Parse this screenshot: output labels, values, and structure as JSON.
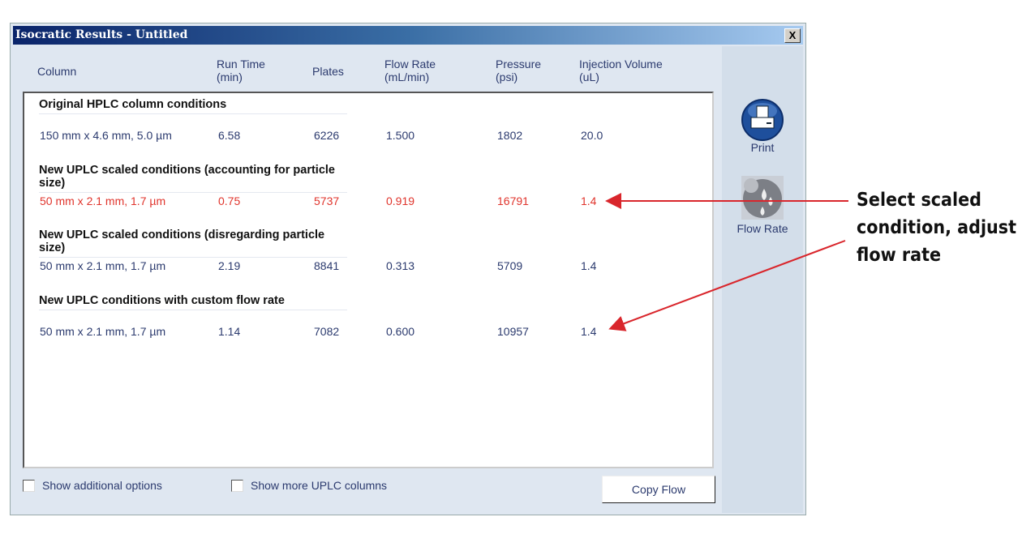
{
  "window": {
    "title": "Isocratic Results - Untitled",
    "close": "X"
  },
  "headers": [
    [
      "Column",
      ""
    ],
    [
      "Run Time",
      "(min)"
    ],
    [
      "Plates",
      ""
    ],
    [
      "Flow Rate",
      "(mL/min)"
    ],
    [
      "Pressure",
      "(psi)"
    ],
    [
      "Injection Volume",
      "(uL)"
    ]
  ],
  "sections": [
    {
      "title": "Original HPLC column conditions",
      "row": [
        "150 mm x 4.6 mm, 5.0 µm",
        "6.58",
        "6226",
        "1.500",
        "1802",
        "20.0"
      ],
      "selected": false
    },
    {
      "title": "New UPLC scaled conditions (accounting for particle size)",
      "row": [
        "50 mm x 2.1 mm, 1.7 µm",
        "0.75",
        "5737",
        "0.919",
        "16791",
        "1.4"
      ],
      "selected": true
    },
    {
      "title": "New UPLC scaled conditions (disregarding particle size)",
      "row": [
        "50 mm x 2.1 mm, 1.7 µm",
        "2.19",
        "8841",
        "0.313",
        "5709",
        "1.4"
      ],
      "selected": false
    },
    {
      "title": "New UPLC conditions with custom flow rate",
      "row": [
        "50 mm x 2.1 mm, 1.7 µm",
        "1.14",
        "7082",
        "0.600",
        "10957",
        "1.4"
      ],
      "selected": false
    }
  ],
  "options": {
    "additional": "Show additional options",
    "more_columns": "Show more UPLC columns",
    "copy_flow": "Copy Flow"
  },
  "tools": {
    "print": "Print",
    "flow_rate": "Flow Rate"
  },
  "annotation": {
    "lines": [
      "Select scaled",
      "condition, adjust",
      "flow rate"
    ],
    "color": "#d9262c"
  },
  "colors": {
    "selected_row": "#e0342c",
    "text": "#2b3a6e"
  }
}
